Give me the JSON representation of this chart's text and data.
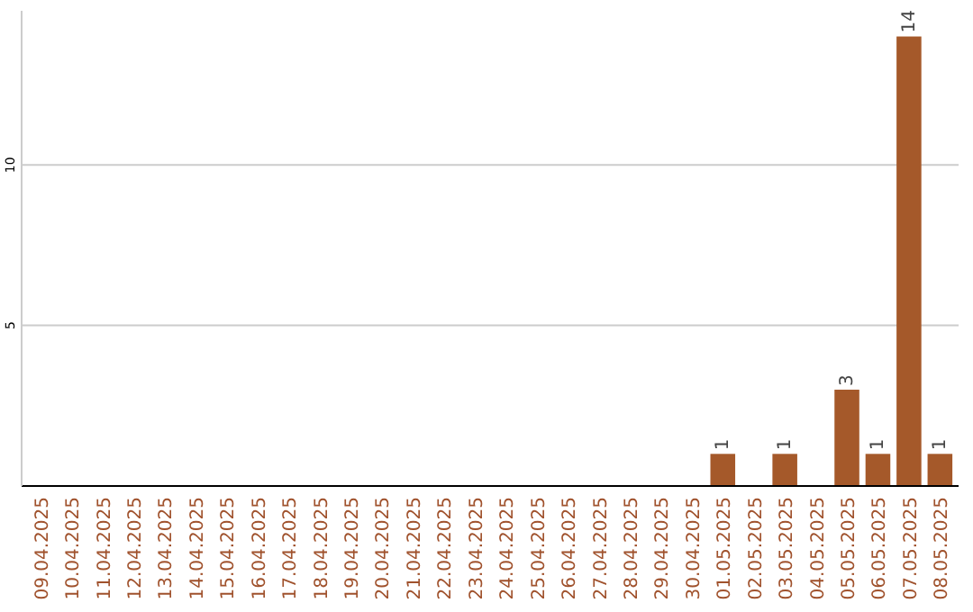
{
  "chart_data": {
    "type": "bar",
    "categories": [
      "09.04.2025",
      "10.04.2025",
      "11.04.2025",
      "12.04.2025",
      "13.04.2025",
      "14.04.2025",
      "15.04.2025",
      "16.04.2025",
      "17.04.2025",
      "18.04.2025",
      "19.04.2025",
      "20.04.2025",
      "21.04.2025",
      "22.04.2025",
      "23.04.2025",
      "24.04.2025",
      "25.04.2025",
      "26.04.2025",
      "27.04.2025",
      "28.04.2025",
      "29.04.2025",
      "30.04.2025",
      "01.05.2025",
      "02.05.2025",
      "03.05.2025",
      "04.05.2025",
      "05.05.2025",
      "06.05.2025",
      "07.05.2025",
      "08.05.2025"
    ],
    "values": [
      0,
      0,
      0,
      0,
      0,
      0,
      0,
      0,
      0,
      0,
      0,
      0,
      0,
      0,
      0,
      0,
      0,
      0,
      0,
      0,
      0,
      0,
      1,
      0,
      1,
      0,
      3,
      1,
      14,
      1
    ],
    "value_labels": [
      null,
      null,
      null,
      null,
      null,
      null,
      null,
      null,
      null,
      null,
      null,
      null,
      null,
      null,
      null,
      null,
      null,
      null,
      null,
      null,
      null,
      null,
      "1",
      null,
      "1",
      null,
      "3",
      "1",
      "14",
      "1"
    ],
    "color": "#a5592a",
    "ylim": [
      0,
      14.8
    ],
    "yticks": [
      5,
      10
    ],
    "grid": "y"
  }
}
